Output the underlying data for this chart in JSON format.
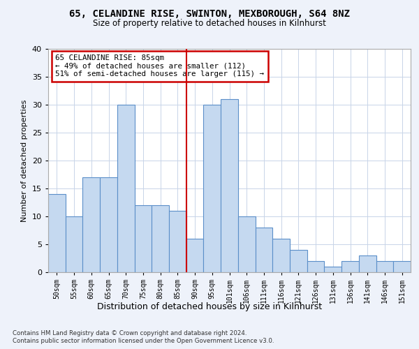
{
  "title_line1": "65, CELANDINE RISE, SWINTON, MEXBOROUGH, S64 8NZ",
  "title_line2": "Size of property relative to detached houses in Kilnhurst",
  "xlabel": "Distribution of detached houses by size in Kilnhurst",
  "ylabel": "Number of detached properties",
  "categories": [
    "50sqm",
    "55sqm",
    "60sqm",
    "65sqm",
    "70sqm",
    "75sqm",
    "80sqm",
    "85sqm",
    "90sqm",
    "95sqm",
    "101sqm",
    "106sqm",
    "111sqm",
    "116sqm",
    "121sqm",
    "126sqm",
    "131sqm",
    "136sqm",
    "141sqm",
    "146sqm",
    "151sqm"
  ],
  "values": [
    14,
    10,
    17,
    17,
    30,
    12,
    12,
    11,
    6,
    30,
    31,
    10,
    8,
    6,
    4,
    2,
    1,
    2,
    3,
    2,
    2
  ],
  "bar_color": "#c5d9f0",
  "bar_edge_color": "#5b8fc9",
  "highlight_index": 7,
  "highlight_line_color": "#cc0000",
  "annotation_text": "65 CELANDINE RISE: 85sqm\n← 49% of detached houses are smaller (112)\n51% of semi-detached houses are larger (115) →",
  "annotation_box_color": "#ffffff",
  "annotation_box_edge": "#cc0000",
  "ylim": [
    0,
    40
  ],
  "yticks": [
    0,
    5,
    10,
    15,
    20,
    25,
    30,
    35,
    40
  ],
  "footer_line1": "Contains HM Land Registry data © Crown copyright and database right 2024.",
  "footer_line2": "Contains public sector information licensed under the Open Government Licence v3.0.",
  "background_color": "#eef2fa",
  "plot_bg_color": "#ffffff",
  "grid_color": "#c8d4e8"
}
